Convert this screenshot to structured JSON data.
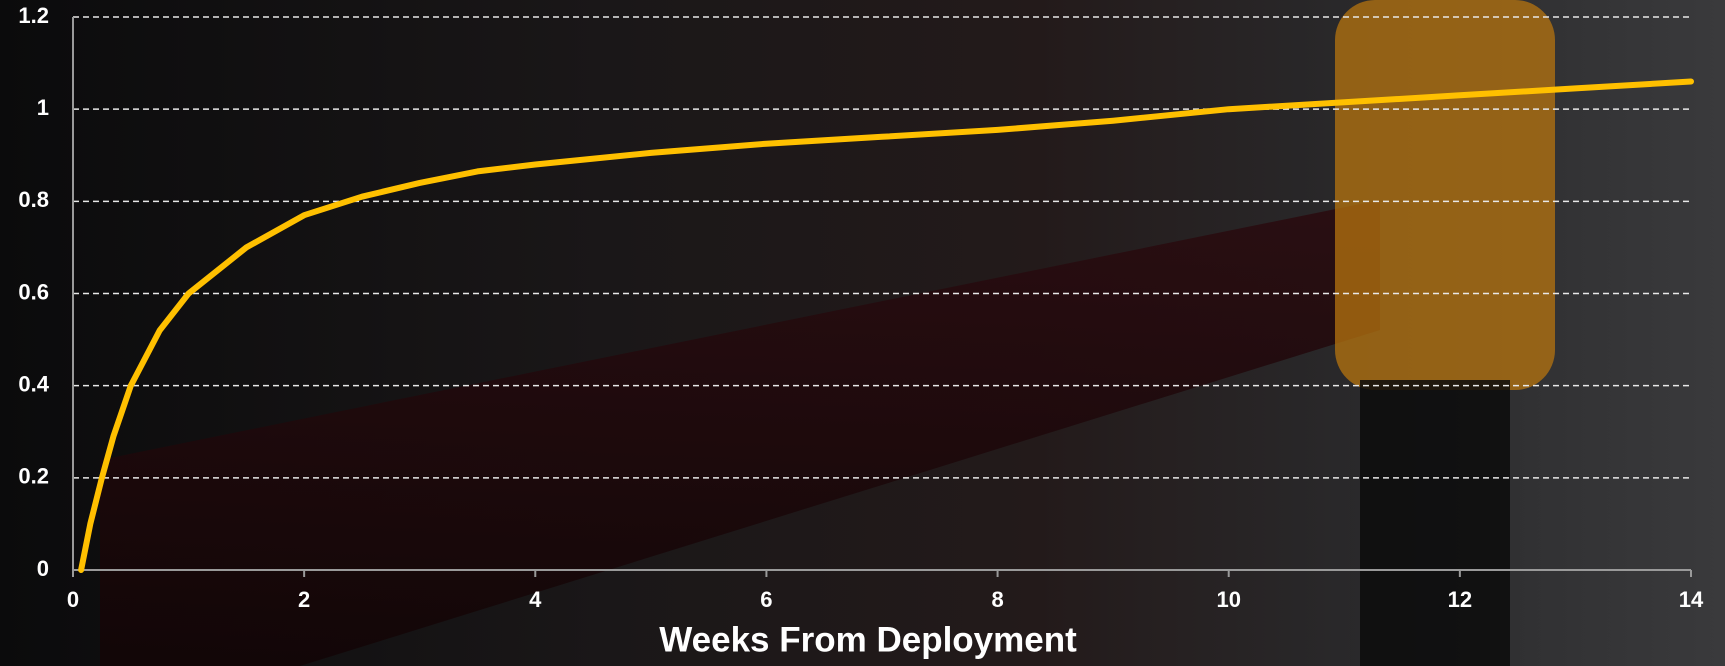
{
  "chart_data": {
    "type": "line",
    "x_label": "Weeks From Deployment",
    "xlim": [
      0,
      14
    ],
    "xticks": [
      0,
      2,
      4,
      6,
      8,
      10,
      12,
      14
    ],
    "ylim": [
      0,
      1.2
    ],
    "yticks": [
      0,
      0.2,
      0.4,
      0.6,
      0.8,
      1,
      1.2
    ],
    "grid": true,
    "series": [
      {
        "color": "#ffc000",
        "x": [
          0.07,
          0.15,
          0.25,
          0.35,
          0.5,
          0.75,
          1,
          1.5,
          2,
          2.5,
          3,
          3.5,
          4,
          5,
          6,
          7,
          8,
          9,
          10,
          11,
          12,
          13,
          14
        ],
        "values": [
          0,
          0.1,
          0.2,
          0.29,
          0.4,
          0.52,
          0.6,
          0.7,
          0.77,
          0.81,
          0.84,
          0.865,
          0.88,
          0.905,
          0.925,
          0.94,
          0.955,
          0.975,
          1.0,
          1.015,
          1.03,
          1.045,
          1.06
        ]
      }
    ]
  }
}
